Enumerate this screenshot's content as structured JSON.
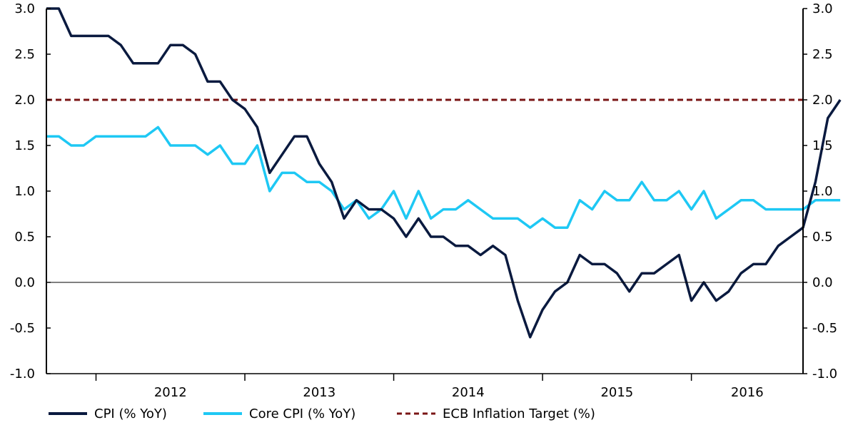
{
  "chart_data": {
    "type": "line",
    "title": "",
    "xlabel": "",
    "ylabel": "",
    "ylim": [
      -1.0,
      3.0
    ],
    "yticks": [
      "3.0",
      "2.5",
      "2.0",
      "1.5",
      "1.0",
      "0.5",
      "0.0",
      "-0.5",
      "-1.0"
    ],
    "ytick_values": [
      3.0,
      2.5,
      2.0,
      1.5,
      1.0,
      0.5,
      0.0,
      -0.5,
      -1.0
    ],
    "x_start": "2011-09",
    "x_end": "2016-10",
    "year_labels": [
      "2012",
      "2013",
      "2014",
      "2015",
      "2016"
    ],
    "grid": false,
    "legend_position": "bottom",
    "colors": {
      "cpi": "#0a1a3f",
      "core": "#1ec8f4",
      "target": "#7a1515",
      "axis": "#000000",
      "zero_line": "#000000"
    },
    "series": [
      {
        "name": "CPI (% YoY)",
        "start": "2011-09",
        "values": [
          3.0,
          3.0,
          2.7,
          2.7,
          2.7,
          2.7,
          2.6,
          2.4,
          2.4,
          2.4,
          2.6,
          2.6,
          2.5,
          2.2,
          2.2,
          2.0,
          1.9,
          1.7,
          1.2,
          1.4,
          1.6,
          1.6,
          1.3,
          1.1,
          0.7,
          0.9,
          0.8,
          0.8,
          0.7,
          0.5,
          0.7,
          0.5,
          0.5,
          0.4,
          0.4,
          0.3,
          0.4,
          0.3,
          -0.2,
          -0.6,
          -0.3,
          -0.1,
          0.0,
          0.3,
          0.2,
          0.2,
          0.1,
          -0.1,
          0.1,
          0.1,
          0.2,
          0.3,
          -0.2,
          0.0,
          -0.2,
          -0.1,
          0.1,
          0.2,
          0.2,
          0.4,
          0.5,
          0.6,
          1.1,
          1.8,
          2.0
        ]
      },
      {
        "name": "Core CPI (% YoY)",
        "start": "2011-09",
        "values": [
          1.6,
          1.6,
          1.5,
          1.5,
          1.6,
          1.6,
          1.6,
          1.6,
          1.6,
          1.7,
          1.5,
          1.5,
          1.5,
          1.4,
          1.5,
          1.3,
          1.3,
          1.5,
          1.0,
          1.2,
          1.2,
          1.1,
          1.1,
          1.0,
          0.8,
          0.9,
          0.7,
          0.8,
          1.0,
          0.7,
          1.0,
          0.7,
          0.8,
          0.8,
          0.9,
          0.8,
          0.7,
          0.7,
          0.7,
          0.6,
          0.7,
          0.6,
          0.6,
          0.9,
          0.8,
          1.0,
          0.9,
          0.9,
          1.1,
          0.9,
          0.9,
          1.0,
          0.8,
          1.0,
          0.7,
          0.8,
          0.9,
          0.9,
          0.8,
          0.8,
          0.8,
          0.8,
          0.9,
          0.9,
          0.9
        ]
      },
      {
        "name": "ECB Inflation Target (%)",
        "start": "2011-09",
        "values": [
          2.0,
          2.0
        ]
      }
    ]
  }
}
